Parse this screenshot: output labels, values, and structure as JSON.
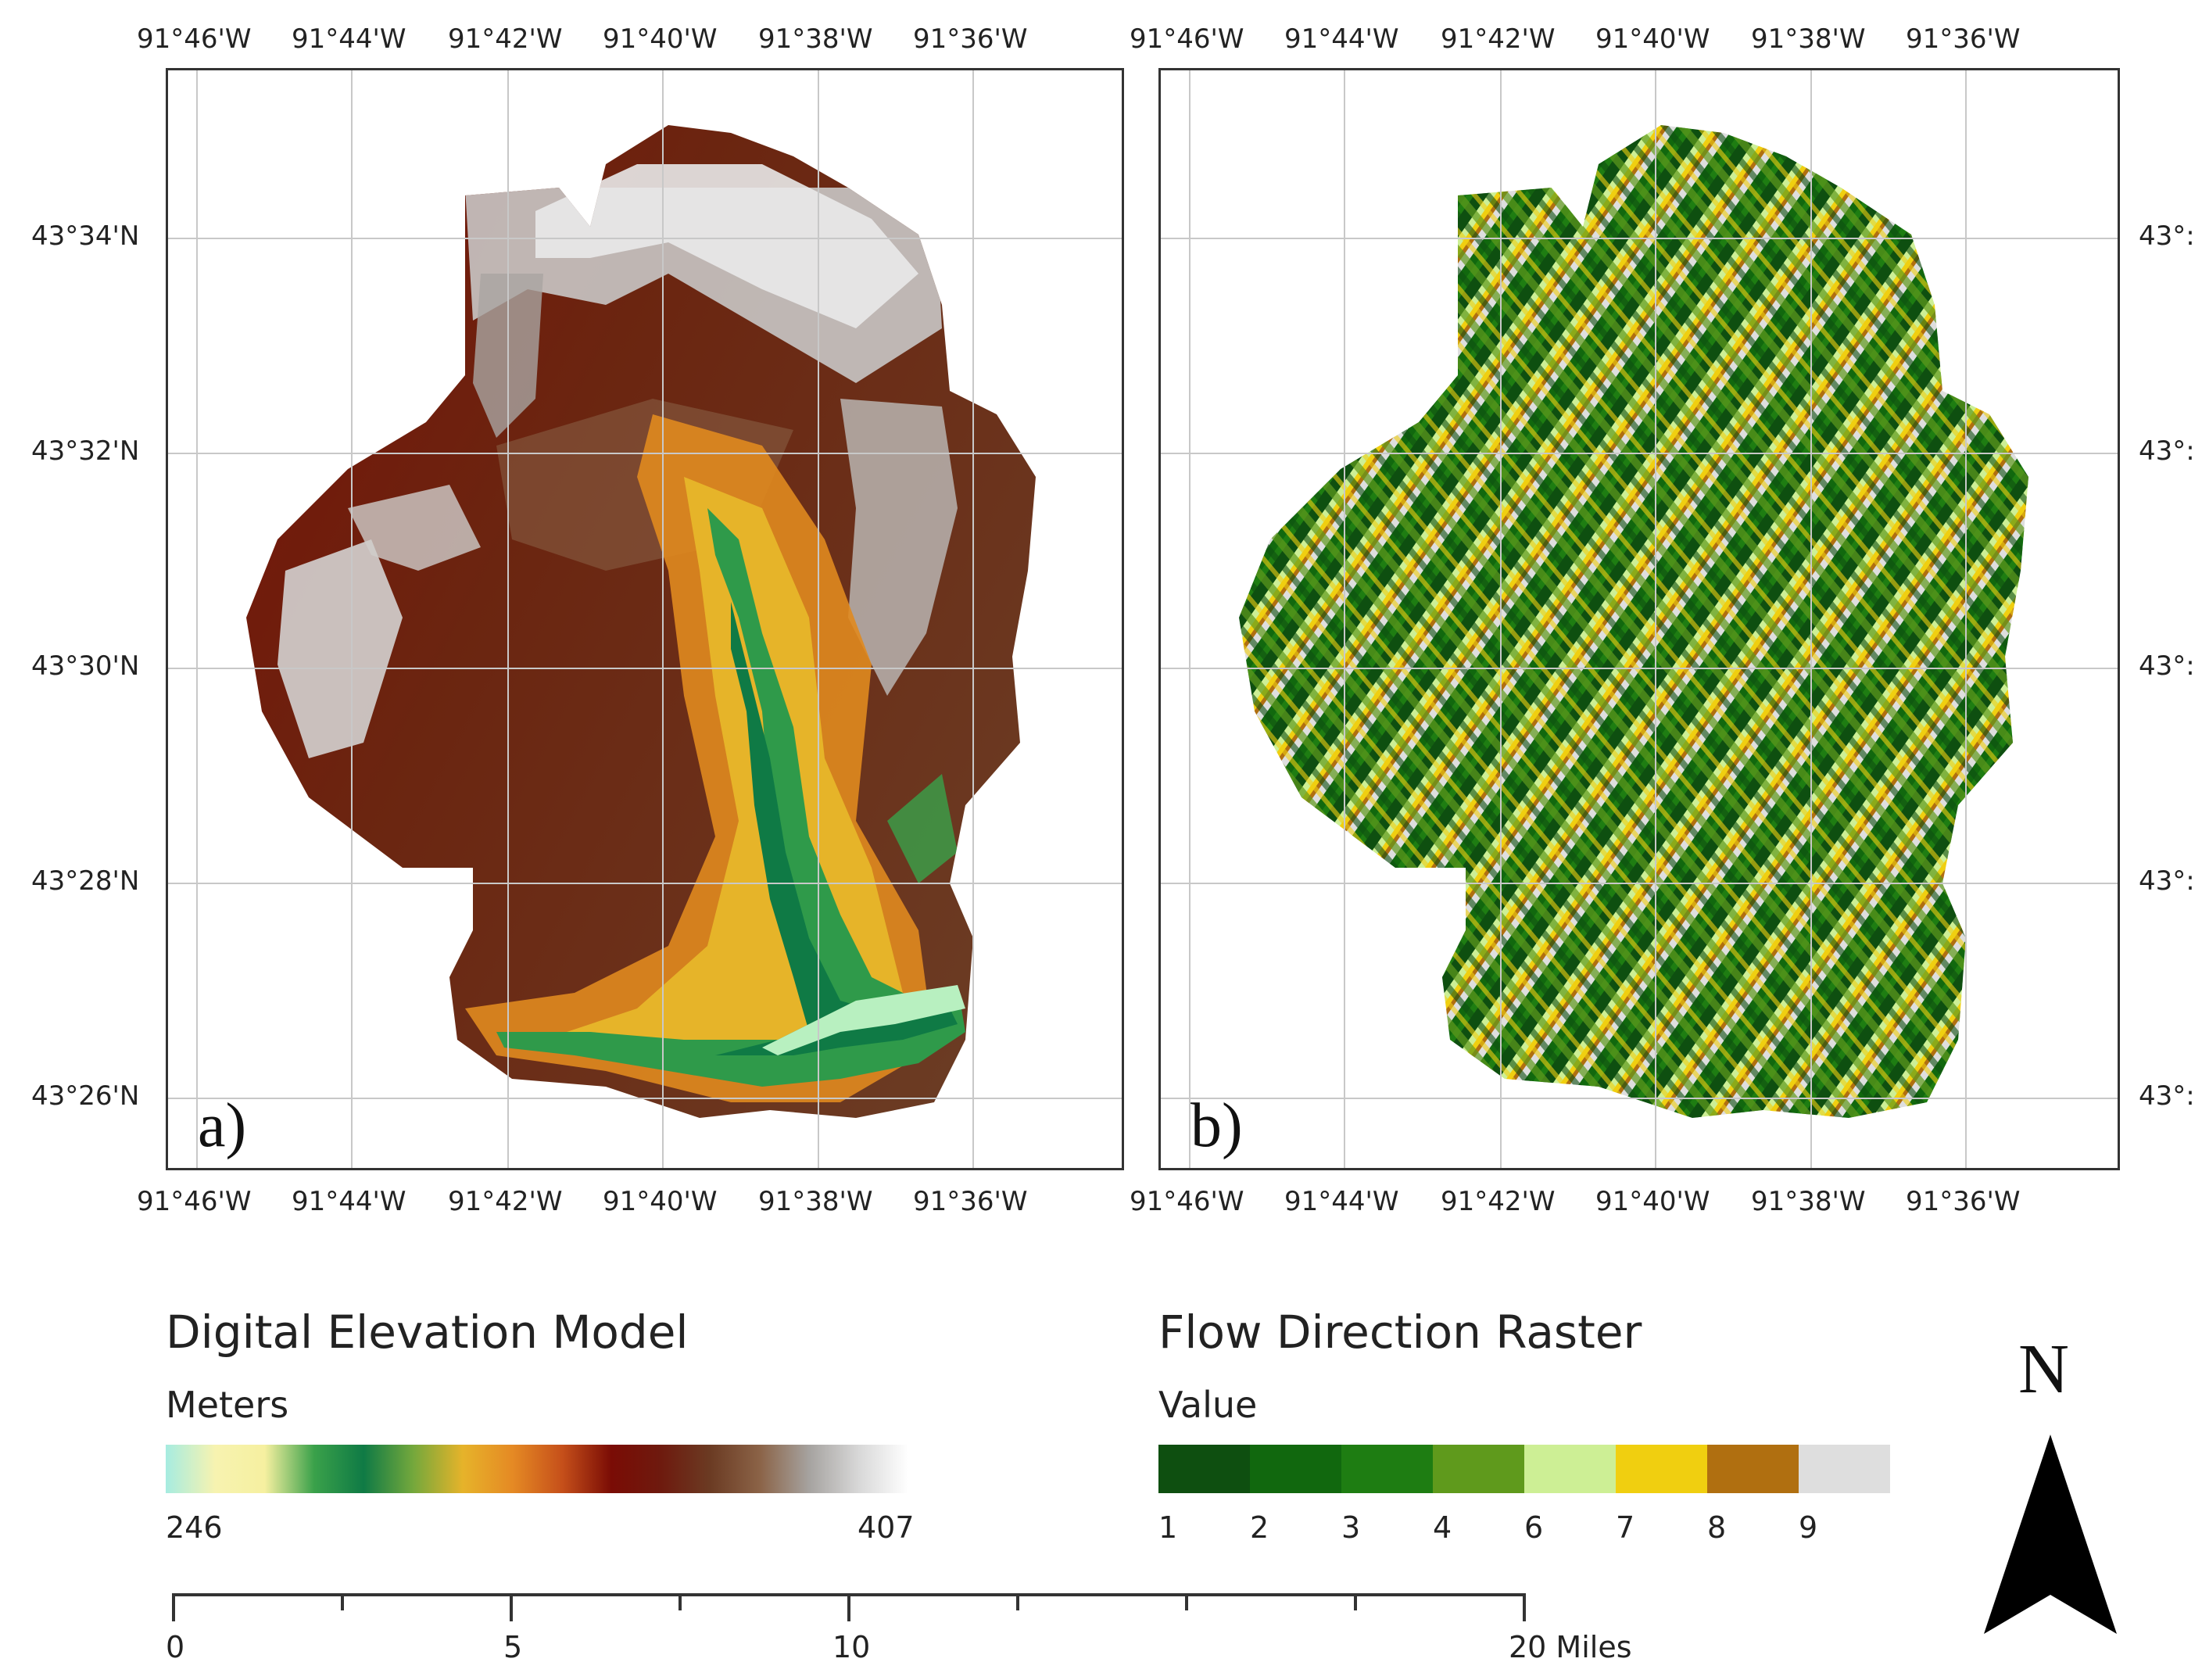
{
  "panels": [
    {
      "letter": "a)",
      "top_lon_labels": [
        "91°46'W",
        "91°44'W",
        "91°42'W",
        "91°40'W",
        "91°38'W",
        "91°36'W"
      ],
      "bottom_lon_labels": [
        "91°46'W",
        "91°44'W",
        "91°42'W",
        "91°40'W",
        "91°38'W",
        "91°36'W"
      ],
      "left_lat_labels": [
        "43°34'N",
        "43°32'N",
        "43°30'N",
        "43°28'N",
        "43°26'N"
      ]
    },
    {
      "letter": "b)",
      "top_lon_labels": [
        "91°46'W",
        "91°44'W",
        "91°42'W",
        "91°40'W",
        "91°38'W",
        "91°36'W"
      ],
      "bottom_lon_labels": [
        "91°46'W",
        "91°44'W",
        "91°42'W",
        "91°40'W",
        "91°38'W",
        "91°36'W"
      ],
      "right_lat_labels": [
        "43°:",
        "43°:",
        "43°:",
        "43°:",
        "43°:"
      ]
    }
  ],
  "legend_dem": {
    "title": "Digital Elevation Model",
    "unit": "Meters",
    "min_label": "246",
    "max_label": "407",
    "gradient_colors": [
      "#a6ece1",
      "#f7f3b0",
      "#f6f0a0",
      "#3aa14a",
      "#0f7a45",
      "#74a83c",
      "#e6b32a",
      "#e58a24",
      "#c6501a",
      "#7a0c05",
      "#6e1a0e",
      "#6b3b23",
      "#8b6347",
      "#a6a3a0",
      "#d8d8d8",
      "#ffffff"
    ]
  },
  "legend_flow": {
    "title": "Flow Direction Raster",
    "unit": "Value",
    "labels": [
      "1",
      "2",
      "3",
      "4",
      "6",
      "7",
      "8",
      "9"
    ],
    "colors": [
      "#0e4f10",
      "#11680e",
      "#1e7d12",
      "#5f9a1c",
      "#cdef95",
      "#f0cf10",
      "#b06f10",
      "#dedede"
    ]
  },
  "scale_bar": {
    "labels": [
      "0",
      "5",
      "10",
      "20 Miles"
    ]
  },
  "north_arrow": {
    "letter": "N"
  }
}
